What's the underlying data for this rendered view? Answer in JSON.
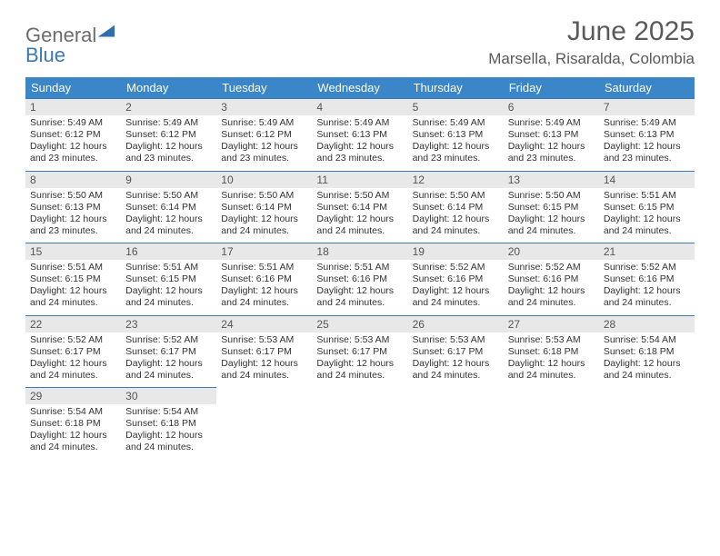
{
  "logo": {
    "word1": "General",
    "word2": "Blue",
    "triangle_color": "#2f6fae"
  },
  "header": {
    "month_title": "June 2025",
    "location": "Marsella, Risaralda, Colombia"
  },
  "colors": {
    "header_bg": "#3a86c8",
    "header_text": "#ffffff",
    "row_divider": "#3a78b6",
    "daynum_bg": "#e8e8e8",
    "text": "#333333",
    "title_text": "#5a5a5a"
  },
  "day_headers": [
    "Sunday",
    "Monday",
    "Tuesday",
    "Wednesday",
    "Thursday",
    "Friday",
    "Saturday"
  ],
  "weeks": [
    [
      {
        "n": "1",
        "sr": "5:49 AM",
        "ss": "6:12 PM",
        "dl": "12 hours and 23 minutes."
      },
      {
        "n": "2",
        "sr": "5:49 AM",
        "ss": "6:12 PM",
        "dl": "12 hours and 23 minutes."
      },
      {
        "n": "3",
        "sr": "5:49 AM",
        "ss": "6:12 PM",
        "dl": "12 hours and 23 minutes."
      },
      {
        "n": "4",
        "sr": "5:49 AM",
        "ss": "6:13 PM",
        "dl": "12 hours and 23 minutes."
      },
      {
        "n": "5",
        "sr": "5:49 AM",
        "ss": "6:13 PM",
        "dl": "12 hours and 23 minutes."
      },
      {
        "n": "6",
        "sr": "5:49 AM",
        "ss": "6:13 PM",
        "dl": "12 hours and 23 minutes."
      },
      {
        "n": "7",
        "sr": "5:49 AM",
        "ss": "6:13 PM",
        "dl": "12 hours and 23 minutes."
      }
    ],
    [
      {
        "n": "8",
        "sr": "5:50 AM",
        "ss": "6:13 PM",
        "dl": "12 hours and 23 minutes."
      },
      {
        "n": "9",
        "sr": "5:50 AM",
        "ss": "6:14 PM",
        "dl": "12 hours and 24 minutes."
      },
      {
        "n": "10",
        "sr": "5:50 AM",
        "ss": "6:14 PM",
        "dl": "12 hours and 24 minutes."
      },
      {
        "n": "11",
        "sr": "5:50 AM",
        "ss": "6:14 PM",
        "dl": "12 hours and 24 minutes."
      },
      {
        "n": "12",
        "sr": "5:50 AM",
        "ss": "6:14 PM",
        "dl": "12 hours and 24 minutes."
      },
      {
        "n": "13",
        "sr": "5:50 AM",
        "ss": "6:15 PM",
        "dl": "12 hours and 24 minutes."
      },
      {
        "n": "14",
        "sr": "5:51 AM",
        "ss": "6:15 PM",
        "dl": "12 hours and 24 minutes."
      }
    ],
    [
      {
        "n": "15",
        "sr": "5:51 AM",
        "ss": "6:15 PM",
        "dl": "12 hours and 24 minutes."
      },
      {
        "n": "16",
        "sr": "5:51 AM",
        "ss": "6:15 PM",
        "dl": "12 hours and 24 minutes."
      },
      {
        "n": "17",
        "sr": "5:51 AM",
        "ss": "6:16 PM",
        "dl": "12 hours and 24 minutes."
      },
      {
        "n": "18",
        "sr": "5:51 AM",
        "ss": "6:16 PM",
        "dl": "12 hours and 24 minutes."
      },
      {
        "n": "19",
        "sr": "5:52 AM",
        "ss": "6:16 PM",
        "dl": "12 hours and 24 minutes."
      },
      {
        "n": "20",
        "sr": "5:52 AM",
        "ss": "6:16 PM",
        "dl": "12 hours and 24 minutes."
      },
      {
        "n": "21",
        "sr": "5:52 AM",
        "ss": "6:16 PM",
        "dl": "12 hours and 24 minutes."
      }
    ],
    [
      {
        "n": "22",
        "sr": "5:52 AM",
        "ss": "6:17 PM",
        "dl": "12 hours and 24 minutes."
      },
      {
        "n": "23",
        "sr": "5:52 AM",
        "ss": "6:17 PM",
        "dl": "12 hours and 24 minutes."
      },
      {
        "n": "24",
        "sr": "5:53 AM",
        "ss": "6:17 PM",
        "dl": "12 hours and 24 minutes."
      },
      {
        "n": "25",
        "sr": "5:53 AM",
        "ss": "6:17 PM",
        "dl": "12 hours and 24 minutes."
      },
      {
        "n": "26",
        "sr": "5:53 AM",
        "ss": "6:17 PM",
        "dl": "12 hours and 24 minutes."
      },
      {
        "n": "27",
        "sr": "5:53 AM",
        "ss": "6:18 PM",
        "dl": "12 hours and 24 minutes."
      },
      {
        "n": "28",
        "sr": "5:54 AM",
        "ss": "6:18 PM",
        "dl": "12 hours and 24 minutes."
      }
    ],
    [
      {
        "n": "29",
        "sr": "5:54 AM",
        "ss": "6:18 PM",
        "dl": "12 hours and 24 minutes."
      },
      {
        "n": "30",
        "sr": "5:54 AM",
        "ss": "6:18 PM",
        "dl": "12 hours and 24 minutes."
      },
      null,
      null,
      null,
      null,
      null
    ]
  ],
  "labels": {
    "sunrise": "Sunrise:",
    "sunset": "Sunset:",
    "daylight": "Daylight:"
  }
}
